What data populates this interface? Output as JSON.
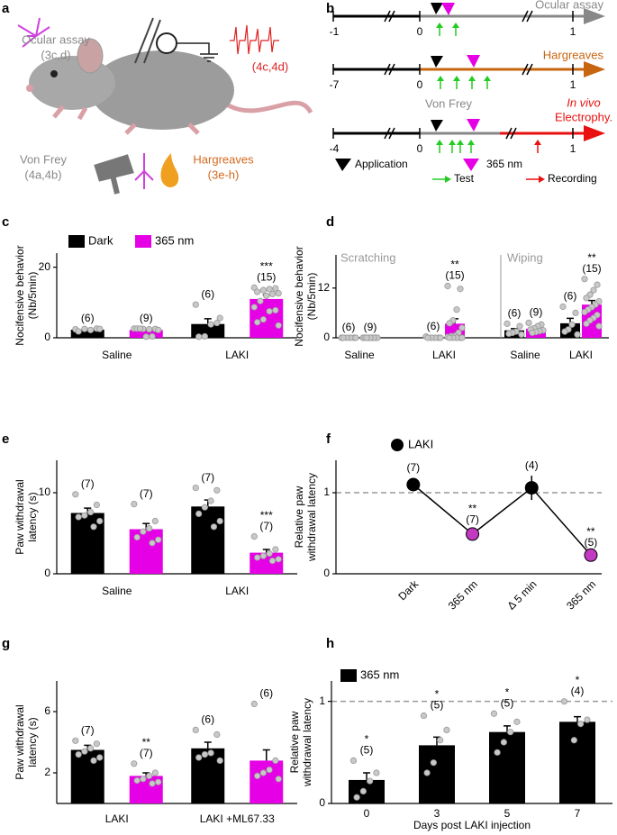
{
  "panel_labels": [
    "a",
    "b",
    "c",
    "d",
    "e",
    "f",
    "g",
    "h"
  ],
  "panel_a": {
    "labels": [
      "Ocular assay",
      "(3c,d)",
      "(4c,4d)",
      "Von Frey",
      "(4a,4b)",
      "Hargreaves",
      "(3e-h)"
    ]
  },
  "panel_b": {
    "timelines": [
      {
        "ticks": [
          "-1",
          "0",
          "1"
        ],
        "label": "Ocular assay"
      },
      {
        "ticks": [
          "-7",
          "0",
          "1"
        ],
        "label": "Hargreaves"
      },
      {
        "ticks": [
          "-4",
          "0",
          "1"
        ],
        "label": "Von Frey",
        "extra_label": "In vivo",
        "extra_label2": "Electrophy."
      }
    ],
    "legend": [
      "Application",
      "365 nm",
      "Test",
      "Recording"
    ]
  },
  "chart_data": [
    {
      "type": "bar",
      "ylabel": [
        "Nocifensive behavior",
        "(Nb/5min)"
      ],
      "categories": [
        "Saline",
        "LAKI"
      ],
      "ylim": [
        0,
        24
      ],
      "yticks": [
        0,
        20
      ],
      "series": [
        {
          "name": "Dark",
          "color": "#000000",
          "values": [
            2.3,
            3.9
          ],
          "errors": [
            0.2,
            1.5
          ],
          "points": [
            [
              2.4,
              2.6,
              2.2,
              2.5,
              1.8,
              2.5
            ],
            [
              9.4,
              4.2,
              3.8,
              0.4,
              0.3,
              5.6
            ]
          ],
          "n_labels": [
            "(6)",
            "(6)"
          ]
        },
        {
          "name": "365 nm",
          "color": "#e600e6",
          "values": [
            2.2,
            11.0
          ],
          "errors": [
            0.3,
            1.2
          ],
          "points": [
            [
              2.6,
              2.5,
              2.4,
              2.5,
              2.6,
              2.2,
              0.4,
              0.3,
              2.6
            ],
            [
              14.2,
              14.0,
              13.8,
              13.5,
              13.0,
              12.6,
              12.4,
              11.9,
              10.4,
              8.7,
              7.8,
              7.5,
              5.2,
              4.4,
              3.5
            ]
          ],
          "n_labels": [
            "(9)",
            "(15)"
          ],
          "stars": {
            "1": "***"
          }
        }
      ]
    },
    {
      "type": "bar",
      "ylabel": [
        "Nocifensive behavior",
        "(Nb/5min)"
      ],
      "ylim": [
        0,
        20
      ],
      "yticks": [
        0,
        12
      ],
      "groups": [
        {
          "title": "Scratching",
          "categories": [
            "Saline",
            "LAKI"
          ],
          "series": [
            {
              "color": "#000000",
              "values": [
                0,
                0.1
              ],
              "errors": [
                0,
                0.1
              ],
              "points": [
                [
                  0,
                  0,
                  0,
                  0,
                  0,
                  0
                ],
                [
                  0.3,
                  0,
                  0,
                  0,
                  0,
                  0
                ]
              ],
              "n_labels": [
                "(6)",
                "(6)"
              ]
            },
            {
              "color": "#e600e6",
              "values": [
                0,
                3.4
              ],
              "errors": [
                0,
                1.2
              ],
              "points": [
                [
                  0,
                  0,
                  0,
                  0,
                  0,
                  0,
                  0,
                  0,
                  0
                ],
                [
                  12.5,
                  11.8,
                  6.8,
                  4.2,
                  3.5,
                  2.4,
                  1.2,
                  0.5,
                  0.4,
                  0.2,
                  0,
                  0,
                  0,
                  0,
                  0
                ]
              ],
              "n_labels": [
                "(9)",
                "(15)"
              ],
              "stars": {
                "1": "**"
              }
            }
          ]
        },
        {
          "title": "Wiping",
          "categories": [
            "Saline",
            "LAKI"
          ],
          "series": [
            {
              "color": "#000000",
              "values": [
                1.8,
                3.5
              ],
              "errors": [
                0.4,
                1.2
              ],
              "points": [
                [
                  3.4,
                  2.8,
                  1.5,
                  1.2,
                  1.0,
                  0.8
                ],
                [
                  7.5,
                  6.0,
                  3.2,
                  2.0,
                  1.5,
                  0.8
                ]
              ],
              "n_labels": [
                "(6)",
                "(6)"
              ]
            },
            {
              "color": "#e600e6",
              "values": [
                2.2,
                8.0
              ],
              "errors": [
                0.5,
                1.0
              ],
              "points": [
                [
                  3.6,
                  3.2,
                  2.8,
                  2.3,
                  2.0,
                  1.8,
                  1.6,
                  1.4,
                  1.2
                ],
                [
                  14.2,
                  12.8,
                  11.5,
                  10.4,
                  9.6,
                  8.8,
                  8.0,
                  7.4,
                  6.8,
                  6.2,
                  5.5,
                  4.8,
                  4.2,
                  3.4,
                  2.8
                ]
              ],
              "n_labels": [
                "(9)",
                "(15)"
              ],
              "stars": {
                "1": "**"
              }
            }
          ]
        }
      ]
    },
    {
      "type": "bar",
      "ylabel": [
        "Paw withdrawal",
        "latency (s)"
      ],
      "categories": [
        "Saline",
        "LAKI"
      ],
      "ylim": [
        0,
        14
      ],
      "yticks": [
        0,
        10
      ],
      "series": [
        {
          "color": "#000000",
          "values": [
            7.5,
            8.3
          ],
          "errors": [
            0.6,
            0.8
          ],
          "points": [
            [
              9.8,
              8.5,
              7.6,
              7.2,
              7.0,
              6.5,
              5.8
            ],
            [
              10.6,
              10.3,
              9.0,
              8.2,
              7.4,
              6.5,
              5.8
            ]
          ],
          "n_labels": [
            "(7)",
            "(7)"
          ]
        },
        {
          "color": "#e600e6",
          "values": [
            5.5,
            2.6
          ],
          "errors": [
            0.7,
            0.4
          ],
          "points": [
            [
              8.6,
              6.5,
              5.6,
              5.2,
              4.5,
              4.2,
              3.8
            ],
            [
              4.6,
              3.0,
              2.5,
              2.2,
              2.0,
              1.8,
              1.6
            ]
          ],
          "n_labels": [
            "(7)",
            "(7)"
          ],
          "stars": {
            "1": "***"
          }
        }
      ]
    },
    {
      "type": "line",
      "ylabel": [
        "Relative paw",
        "withdrawal latency"
      ],
      "categories": [
        "Dark",
        "365 nm",
        "Δ 5 min",
        "365 nm"
      ],
      "ylim": [
        0,
        1.4
      ],
      "yticks": [
        0,
        1
      ],
      "hline": 1,
      "series": [
        {
          "name": "LAKI",
          "color": "#000000",
          "values": [
            1.1,
            0.49,
            1.06,
            0.23
          ],
          "errors": [
            0.08,
            0.05,
            0.15,
            0.03
          ],
          "point_colors": [
            "#000000",
            "#c23ac2",
            "#000000",
            "#c23ac2"
          ],
          "n_labels": [
            "(7)",
            "(7)",
            "(4)",
            "(5)"
          ],
          "stars": {
            "1": "**",
            "3": "**"
          }
        }
      ]
    },
    {
      "type": "bar",
      "ylabel": [
        "Paw withdrawal",
        "latency (s)"
      ],
      "categories": [
        "LAKI",
        "LAKI +ML67.33"
      ],
      "ylim": [
        0,
        8
      ],
      "yticks": [
        2,
        6
      ],
      "series": [
        {
          "color": "#000000",
          "values": [
            3.5,
            3.6
          ],
          "errors": [
            0.3,
            0.4
          ],
          "points": [
            [
              4.1,
              3.9,
              3.6,
              3.4,
              3.2,
              3.0,
              2.8
            ],
            [
              4.8,
              4.5,
              3.3,
              3.2,
              3.0,
              2.8
            ]
          ],
          "n_labels": [
            "(7)",
            "(6)"
          ]
        },
        {
          "color": "#e600e6",
          "values": [
            1.8,
            2.8
          ],
          "errors": [
            0.2,
            0.7
          ],
          "points": [
            [
              2.6,
              2.0,
              1.8,
              1.6,
              1.5,
              1.4,
              1.3
            ],
            [
              6.5,
              2.8,
              2.2,
              2.0,
              1.8,
              1.6
            ]
          ],
          "n_labels": [
            "(7)",
            "(6)"
          ],
          "stars": {
            "0": "**"
          }
        }
      ]
    },
    {
      "type": "bar",
      "ylabel": [
        "Relative paw",
        "withdrawal latency"
      ],
      "xlabel": "Days post LAKI injection",
      "categories": [
        "0",
        "3",
        "5",
        "7"
      ],
      "ylim": [
        0,
        1.2
      ],
      "yticks": [
        0,
        1
      ],
      "hline": 1,
      "series": [
        {
          "name": "365 nm",
          "color": "#000000",
          "values": [
            0.23,
            0.57,
            0.7,
            0.8
          ],
          "errors": [
            0.07,
            0.08,
            0.06,
            0.05
          ],
          "points": [
            [
              0.42,
              0.3,
              0.22,
              0.12,
              0.06
            ],
            [
              0.86,
              0.72,
              0.62,
              0.4,
              0.3
            ],
            [
              0.88,
              0.8,
              0.7,
              0.6,
              0.5
            ],
            [
              1.0,
              0.82,
              0.78,
              0.62
            ]
          ],
          "n_labels": [
            "(5)",
            "(5)",
            "(5)",
            "(4)"
          ],
          "stars": {
            "0": "*",
            "1": "*",
            "2": "*",
            "3": "*"
          }
        }
      ]
    }
  ]
}
